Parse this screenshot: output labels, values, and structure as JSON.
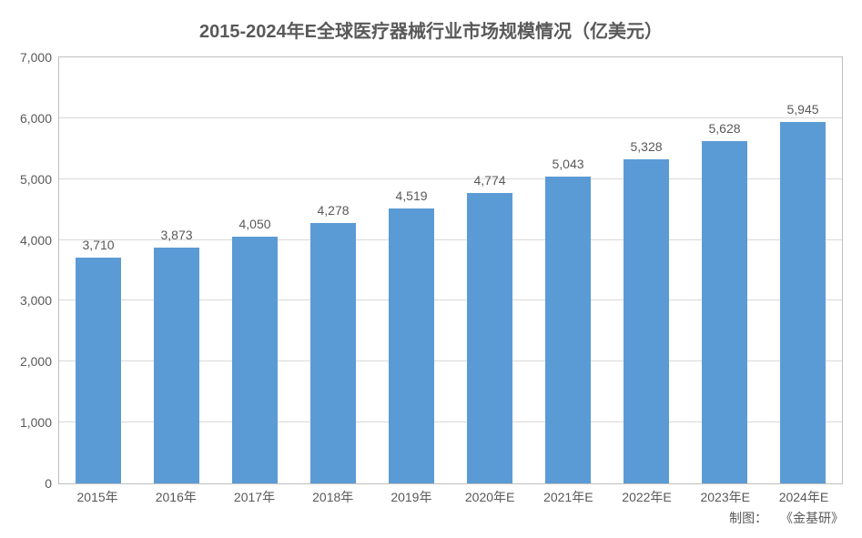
{
  "chart": {
    "type": "bar",
    "title": "2015-2024年E全球医疗器械行业市场规模情况（亿美元）",
    "title_fontsize": 20,
    "title_color": "#595959",
    "categories": [
      "2015年",
      "2016年",
      "2017年",
      "2018年",
      "2019年",
      "2020年E",
      "2021年E",
      "2022年E",
      "2023年E",
      "2024年E"
    ],
    "values": [
      3710,
      3873,
      4050,
      4278,
      4519,
      4774,
      5043,
      5328,
      5628,
      5945
    ],
    "value_labels": [
      "3,710",
      "3,873",
      "4,050",
      "4,278",
      "4,519",
      "4,774",
      "5,043",
      "5,328",
      "5,628",
      "5,945"
    ],
    "bar_color": "#5b9bd5",
    "bar_width": 0.58,
    "ylim": [
      0,
      7000
    ],
    "ytick_step": 1000,
    "ytick_labels": [
      "0",
      "1,000",
      "2,000",
      "3,000",
      "4,000",
      "5,000",
      "6,000",
      "7,000"
    ],
    "grid_color": "#d9d9d9",
    "border_color": "#bfbfbf",
    "background_color": "#ffffff",
    "axis_label_fontsize": 14,
    "axis_label_color": "#595959",
    "value_label_fontsize": 14,
    "value_label_color": "#595959"
  },
  "credit": {
    "label": "制图：",
    "source": "《金基研》",
    "fontsize": 14,
    "color": "#595959"
  }
}
